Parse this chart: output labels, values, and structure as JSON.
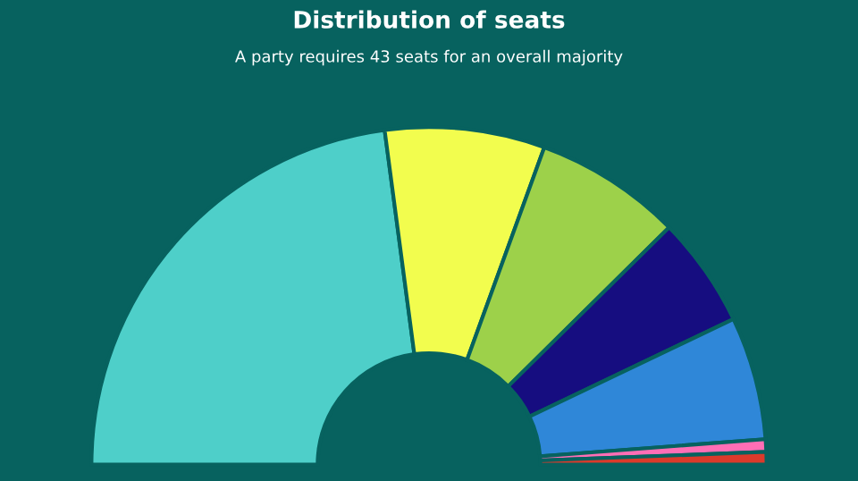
{
  "chart_data": {
    "type": "donut",
    "title": "Distribution of seats",
    "subtitle": "A party requires 43 seats for an overall majority",
    "categories": [
      null,
      null,
      null,
      null,
      null,
      null,
      null
    ],
    "values": [
      45.8,
      15.3,
      14.1,
      10.6,
      11.8,
      1.2,
      1.2
    ],
    "colors": [
      "#4ecfc9",
      "#f2fd4e",
      "#9dd14a",
      "#160d80",
      "#2f87d8",
      "#ff6eb5",
      "#dc3a2b"
    ]
  }
}
